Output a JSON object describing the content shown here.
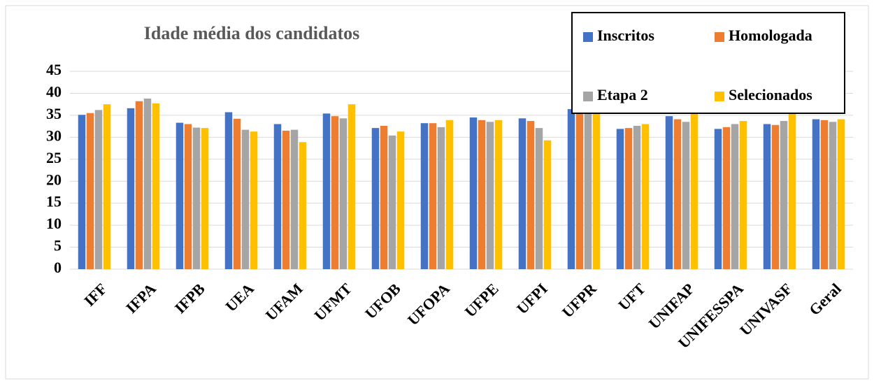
{
  "chart_data": {
    "type": "bar",
    "title": "Idade média dos candidatos",
    "categories": [
      "IFF",
      "IFPA",
      "IFPB",
      "UEA",
      "UFAM",
      "UFMT",
      "UFOB",
      "UFOPA",
      "UFPE",
      "UFPI",
      "UFPR",
      "UFT",
      "UNIFAP",
      "UNIFESSPA",
      "UNIVASF",
      "Geral"
    ],
    "series": [
      {
        "name": "Inscritos",
        "color": "#4472c4",
        "values": [
          35.1,
          36.6,
          33.3,
          35.7,
          33.0,
          35.4,
          32.1,
          33.2,
          34.5,
          34.3,
          36.4,
          31.9,
          34.8,
          31.9,
          33.0,
          34.1
        ]
      },
      {
        "name": "Homologada",
        "color": "#ed7d31",
        "values": [
          35.5,
          38.2,
          33.0,
          34.2,
          31.5,
          34.8,
          32.6,
          33.2,
          33.9,
          33.7,
          36.8,
          32.1,
          34.1,
          32.3,
          32.8,
          33.9
        ]
      },
      {
        "name": "Etapa 2",
        "color": "#a5a5a5",
        "values": [
          36.2,
          38.8,
          32.2,
          31.7,
          31.7,
          34.3,
          30.4,
          32.3,
          33.5,
          32.1,
          36.2,
          32.6,
          33.5,
          33.0,
          33.7,
          33.5
        ]
      },
      {
        "name": "Selecionados",
        "color": "#ffc000",
        "values": [
          37.5,
          37.7,
          32.1,
          31.3,
          28.9,
          37.5,
          31.3,
          33.9,
          33.9,
          29.3,
          36.0,
          33.0,
          37.1,
          33.7,
          36.2,
          34.1
        ]
      }
    ],
    "ylim": [
      0,
      45
    ],
    "yticks": [
      0,
      5,
      10,
      15,
      20,
      25,
      30,
      35,
      40,
      45
    ],
    "grid": true,
    "legend": "top-right"
  }
}
